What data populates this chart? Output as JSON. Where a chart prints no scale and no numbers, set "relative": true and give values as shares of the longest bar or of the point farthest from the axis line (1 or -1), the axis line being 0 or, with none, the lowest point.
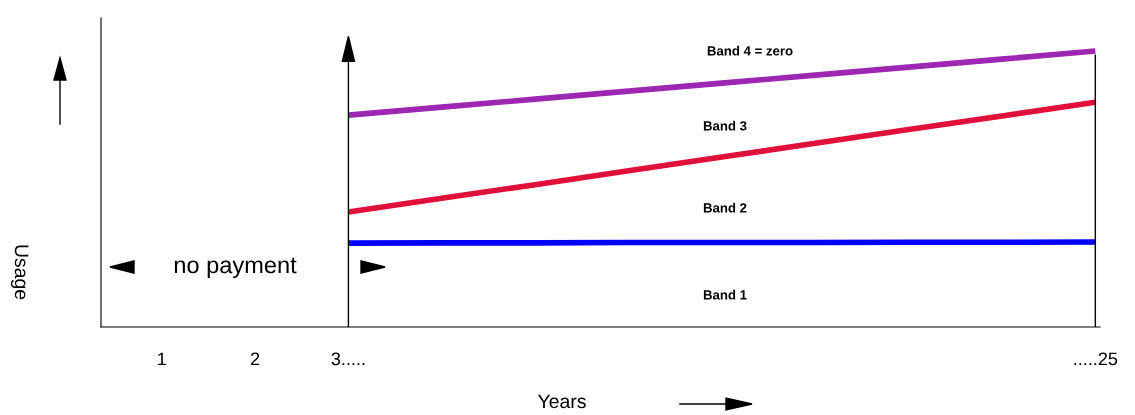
{
  "chart_data": {
    "type": "line",
    "relative": true,
    "xlabel": "Years",
    "ylabel": "Usage",
    "categories": [
      "1",
      "2",
      "3.....",
      null,
      null,
      null,
      null,
      null,
      null,
      null,
      ".....25"
    ],
    "series": [
      {
        "color": "#9c27b0",
        "values": [
          null,
          null,
          0.768,
          0.797,
          0.826,
          0.855,
          0.884,
          0.913,
          0.942,
          0.971,
          1.0
        ]
      },
      {
        "color": "#e0103a",
        "values": [
          null,
          null,
          0.417,
          0.467,
          0.516,
          0.566,
          0.616,
          0.666,
          0.716,
          0.765,
          0.815
        ]
      },
      {
        "color": "#0000ff",
        "values": [
          null,
          null,
          0.304,
          0.305,
          0.305,
          0.306,
          0.306,
          0.306,
          0.307,
          0.307,
          0.308
        ]
      }
    ],
    "ref_lines": [
      {
        "axis": "x",
        "value": "3.....",
        "color": "#000000"
      },
      {
        "axis": "x",
        "value": ".....25",
        "color": "#000000"
      }
    ],
    "annotations": [
      "Band 4 = zero",
      "Band 3",
      "Band 2",
      "Band 1",
      "no payment"
    ],
    "grid": false,
    "legend": false,
    "marker": "none",
    "line_style": "solid"
  }
}
